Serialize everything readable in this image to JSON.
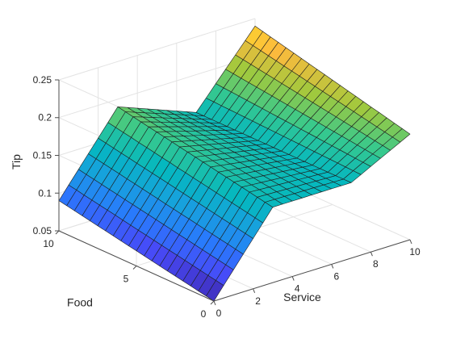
{
  "chart_data": {
    "type": "surface",
    "title": "",
    "xlabel": "Service",
    "ylabel": "Food",
    "zlabel": "Tip",
    "xlim": [
      0,
      10
    ],
    "ylim": [
      0,
      10
    ],
    "zlim": [
      0.05,
      0.25
    ],
    "x_ticks": [
      0,
      2,
      4,
      6,
      8,
      10
    ],
    "x_tick_labels": [
      "0",
      "2",
      "4",
      "6",
      "8",
      "10"
    ],
    "y_ticks": [
      0,
      5,
      10
    ],
    "y_tick_labels": [
      "0",
      "5",
      "10"
    ],
    "z_ticks": [
      0.05,
      0.1,
      0.15,
      0.2,
      0.25
    ],
    "z_tick_labels": [
      "0.05",
      "0.1",
      "0.15",
      "0.2",
      "0.25"
    ],
    "grid": true,
    "colormap": "parula",
    "mesh_samples": 21,
    "corner_values": {
      "service_0_food_0": 0.05,
      "service_0_food_10": 0.09,
      "service_3_food_3": 0.15,
      "service_3_food_10": 0.19,
      "service_7_food_0": 0.15,
      "service_7_food_10": 0.15,
      "service_10_food_0": 0.19,
      "service_10_food_10": 0.24
    }
  }
}
